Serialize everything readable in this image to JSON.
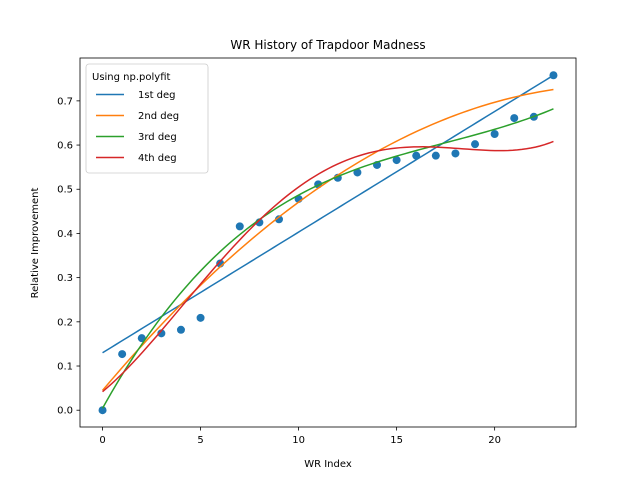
{
  "chart_data": {
    "type": "scatter",
    "title": "WR History of Trapdoor Madness",
    "xlabel": "WR Index",
    "ylabel": "Relative Improvement",
    "xlim": [
      -1.15,
      24.15
    ],
    "ylim": [
      -0.038,
      0.797
    ],
    "xticks": [
      0,
      5,
      10,
      15,
      20
    ],
    "yticks": [
      0.0,
      0.1,
      0.2,
      0.3,
      0.4,
      0.5,
      0.6,
      0.7
    ],
    "grid": false,
    "legend": {
      "title": "Using np.polyfit",
      "placement": "top-left"
    },
    "points": {
      "color": "#1f77b4",
      "x": [
        0,
        1,
        2,
        3,
        4,
        5,
        6,
        7,
        8,
        9,
        10,
        11,
        12,
        13,
        14,
        15,
        16,
        17,
        18,
        19,
        20,
        21,
        22,
        23
      ],
      "y": [
        0.0,
        0.127,
        0.163,
        0.174,
        0.182,
        0.209,
        0.332,
        0.416,
        0.425,
        0.432,
        0.478,
        0.511,
        0.526,
        0.538,
        0.555,
        0.566,
        0.576,
        0.576,
        0.581,
        0.602,
        0.625,
        0.661,
        0.664,
        0.758
      ]
    },
    "series": [
      {
        "name": "1st deg",
        "color": "#1f77b4",
        "coeffs": [
          0.13,
          0.0273
        ]
      },
      {
        "name": "2nd deg",
        "color": "#ff7f0e",
        "coeffs": [
          0.0448,
          0.0526,
          -0.001
        ]
      },
      {
        "name": "3rd deg",
        "color": "#2ca02c",
        "coeffs": [
          0.0044,
          0.0798,
          -0.0039,
          7.44e-05
        ]
      },
      {
        "name": "4th deg",
        "color": "#d62728",
        "coeffs": [
          0.0419,
          0.0368,
          0.0043,
          -0.000431,
          9.61e-06
        ]
      }
    ]
  }
}
